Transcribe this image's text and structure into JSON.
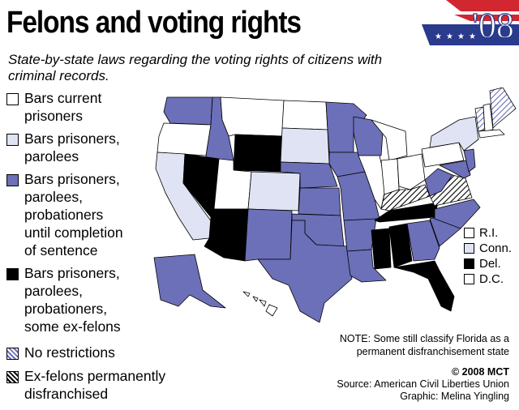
{
  "title": "Felons and voting rights",
  "subtitle": "State-by-state laws regarding the voting rights of citizens with criminal records.",
  "logo_text": "'08",
  "legend": [
    {
      "label": "Bars current\nprisoners",
      "fill": "white"
    },
    {
      "label": "Bars prisoners,\nparolees",
      "fill": "lightblue"
    },
    {
      "label": "Bars prisoners,\nparolees,\nprobationers\nuntil completion\nof sentence",
      "fill": "purple"
    },
    {
      "label": "Bars prisoners,\nparolees,\nprobationers,\nsome ex-felons",
      "fill": "black"
    },
    {
      "label": "No restrictions",
      "fill": "hatch-blue"
    },
    {
      "label": "Ex-felons permanently\ndisfranchised",
      "fill": "hatch-black"
    }
  ],
  "small_states": [
    {
      "label": "R.I.",
      "fill": "white"
    },
    {
      "label": "Conn.",
      "fill": "lightblue"
    },
    {
      "label": "Del.",
      "fill": "black"
    },
    {
      "label": "D.C.",
      "fill": "white"
    }
  ],
  "note": "NOTE: Some still classify Florida as a\npermanent disfranchisement state",
  "credits": {
    "copyright": "© 2008 MCT",
    "source": "Source: American Civil Liberties Union",
    "graphic": "Graphic: Melina Yingling"
  },
  "colors": {
    "white": "#ffffff",
    "lightblue": "#dfe3f3",
    "purple": "#6c70b8",
    "black": "#000000",
    "hatch-blue": "#6c70b8",
    "hatch-black": "#000000",
    "logo-red": "#d22630",
    "logo-blue": "#2a3a8c"
  },
  "map_states": [
    {
      "name": "Washington",
      "fill": "purple"
    },
    {
      "name": "Oregon",
      "fill": "white"
    },
    {
      "name": "California",
      "fill": "lightblue"
    },
    {
      "name": "Idaho",
      "fill": "purple"
    },
    {
      "name": "Nevada",
      "fill": "black"
    },
    {
      "name": "Montana",
      "fill": "white"
    },
    {
      "name": "Wyoming",
      "fill": "black"
    },
    {
      "name": "Utah",
      "fill": "white"
    },
    {
      "name": "Arizona",
      "fill": "black"
    },
    {
      "name": "Colorado",
      "fill": "lightblue"
    },
    {
      "name": "New Mexico",
      "fill": "purple"
    },
    {
      "name": "North Dakota",
      "fill": "white"
    },
    {
      "name": "South Dakota",
      "fill": "lightblue"
    },
    {
      "name": "Nebraska",
      "fill": "purple"
    },
    {
      "name": "Kansas",
      "fill": "purple"
    },
    {
      "name": "Oklahoma",
      "fill": "purple"
    },
    {
      "name": "Texas",
      "fill": "purple"
    },
    {
      "name": "Minnesota",
      "fill": "purple"
    },
    {
      "name": "Iowa",
      "fill": "purple"
    },
    {
      "name": "Missouri",
      "fill": "purple"
    },
    {
      "name": "Arkansas",
      "fill": "purple"
    },
    {
      "name": "Louisiana",
      "fill": "purple"
    },
    {
      "name": "Wisconsin",
      "fill": "purple"
    },
    {
      "name": "Illinois",
      "fill": "white"
    },
    {
      "name": "Michigan",
      "fill": "white"
    },
    {
      "name": "Indiana",
      "fill": "white"
    },
    {
      "name": "Ohio",
      "fill": "white"
    },
    {
      "name": "Kentucky",
      "fill": "hatch-black"
    },
    {
      "name": "Tennessee",
      "fill": "black"
    },
    {
      "name": "Mississippi",
      "fill": "black"
    },
    {
      "name": "Alabama",
      "fill": "black"
    },
    {
      "name": "Georgia",
      "fill": "purple"
    },
    {
      "name": "Florida",
      "fill": "black"
    },
    {
      "name": "South Carolina",
      "fill": "purple"
    },
    {
      "name": "North Carolina",
      "fill": "purple"
    },
    {
      "name": "Virginia",
      "fill": "hatch-black"
    },
    {
      "name": "West Virginia",
      "fill": "purple"
    },
    {
      "name": "Maryland",
      "fill": "purple"
    },
    {
      "name": "Pennsylvania",
      "fill": "white"
    },
    {
      "name": "New York",
      "fill": "lightblue"
    },
    {
      "name": "New Jersey",
      "fill": "purple"
    },
    {
      "name": "Vermont",
      "fill": "hatch-blue"
    },
    {
      "name": "New Hampshire",
      "fill": "white"
    },
    {
      "name": "Maine",
      "fill": "hatch-blue"
    },
    {
      "name": "Massachusetts",
      "fill": "white"
    },
    {
      "name": "Alaska",
      "fill": "purple"
    },
    {
      "name": "Hawaii",
      "fill": "white"
    }
  ]
}
